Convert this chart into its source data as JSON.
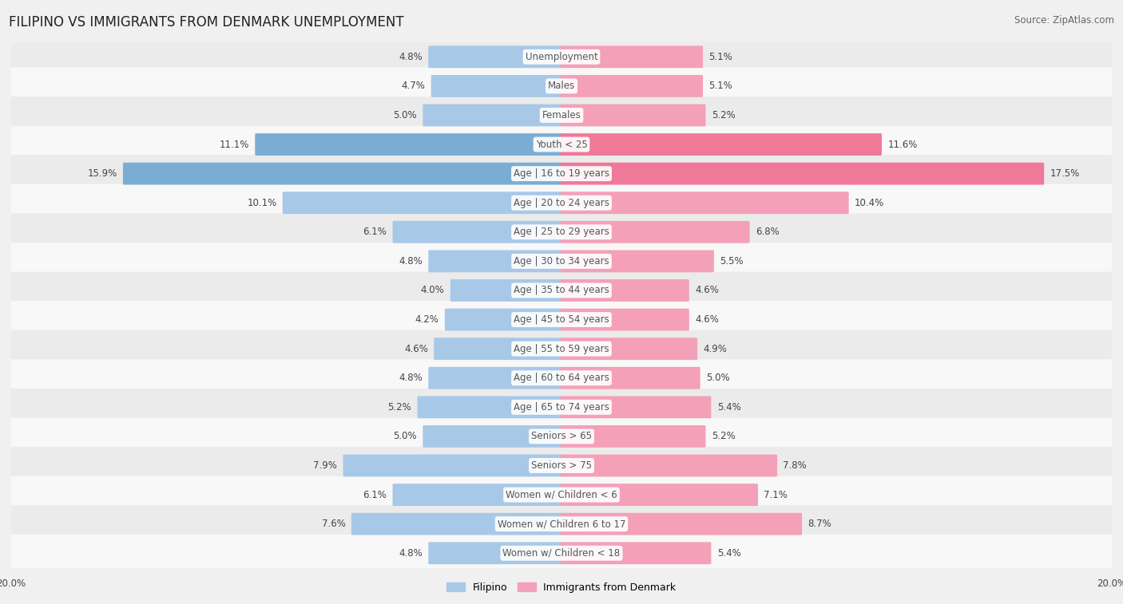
{
  "title": "FILIPINO VS IMMIGRANTS FROM DENMARK UNEMPLOYMENT",
  "source": "Source: ZipAtlas.com",
  "categories": [
    "Unemployment",
    "Males",
    "Females",
    "Youth < 25",
    "Age | 16 to 19 years",
    "Age | 20 to 24 years",
    "Age | 25 to 29 years",
    "Age | 30 to 34 years",
    "Age | 35 to 44 years",
    "Age | 45 to 54 years",
    "Age | 55 to 59 years",
    "Age | 60 to 64 years",
    "Age | 65 to 74 years",
    "Seniors > 65",
    "Seniors > 75",
    "Women w/ Children < 6",
    "Women w/ Children 6 to 17",
    "Women w/ Children < 18"
  ],
  "filipino": [
    4.8,
    4.7,
    5.0,
    11.1,
    15.9,
    10.1,
    6.1,
    4.8,
    4.0,
    4.2,
    4.6,
    4.8,
    5.2,
    5.0,
    7.9,
    6.1,
    7.6,
    4.8
  ],
  "denmark": [
    5.1,
    5.1,
    5.2,
    11.6,
    17.5,
    10.4,
    6.8,
    5.5,
    4.6,
    4.6,
    4.9,
    5.0,
    5.4,
    5.2,
    7.8,
    7.1,
    8.7,
    5.4
  ],
  "filipino_color": "#a8c8e8",
  "denmark_color": "#f4a0b8",
  "highlight_filipino_color": "#7aadd4",
  "highlight_denmark_color": "#f07898",
  "row_even_color": "#ebebeb",
  "row_odd_color": "#f8f8f8",
  "label_color": "#555555",
  "value_color": "#444444",
  "axis_limit": 20.0,
  "legend_filipino": "Filipino",
  "legend_denmark": "Immigrants from Denmark",
  "title_fontsize": 12,
  "label_fontsize": 8.5,
  "value_fontsize": 8.5,
  "source_fontsize": 8.5,
  "highlight_rows": [
    3,
    4
  ],
  "highlight_filipino_vals": [
    11.1,
    15.9
  ],
  "highlight_denmark_vals": [
    11.6,
    17.5
  ]
}
